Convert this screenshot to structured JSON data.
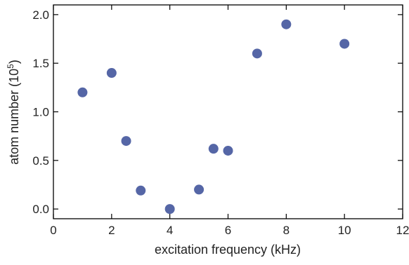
{
  "chart_data": {
    "type": "scatter",
    "title": "",
    "xlabel": "excitation frequency (kHz)",
    "ylabel": {
      "prefix": "atom number (10",
      "exponent": "5",
      "suffix": ")"
    },
    "xlim": [
      0,
      12
    ],
    "ylim": [
      -0.1,
      2.1
    ],
    "x_ticks": [
      {
        "value": 0,
        "label": "0"
      },
      {
        "value": 2,
        "label": "2"
      },
      {
        "value": 4,
        "label": "4"
      },
      {
        "value": 6,
        "label": "6"
      },
      {
        "value": 8,
        "label": "8"
      },
      {
        "value": 10,
        "label": "10"
      },
      {
        "value": 12,
        "label": "12"
      }
    ],
    "y_ticks": [
      {
        "value": 0.0,
        "label": "0.0"
      },
      {
        "value": 0.5,
        "label": "0.5"
      },
      {
        "value": 1.0,
        "label": "1.0"
      },
      {
        "value": 1.5,
        "label": "1.5"
      },
      {
        "value": 2.0,
        "label": "2.0"
      }
    ],
    "grid": false,
    "marker_color": "#5566a6",
    "points": [
      {
        "x": 1.0,
        "y": 1.2
      },
      {
        "x": 2.0,
        "y": 1.4
      },
      {
        "x": 2.5,
        "y": 0.7
      },
      {
        "x": 3.0,
        "y": 0.19
      },
      {
        "x": 4.0,
        "y": 0.0
      },
      {
        "x": 5.0,
        "y": 0.2
      },
      {
        "x": 5.5,
        "y": 0.62
      },
      {
        "x": 6.0,
        "y": 0.6
      },
      {
        "x": 7.0,
        "y": 1.6
      },
      {
        "x": 8.0,
        "y": 1.9
      },
      {
        "x": 10.0,
        "y": 1.7
      }
    ]
  }
}
